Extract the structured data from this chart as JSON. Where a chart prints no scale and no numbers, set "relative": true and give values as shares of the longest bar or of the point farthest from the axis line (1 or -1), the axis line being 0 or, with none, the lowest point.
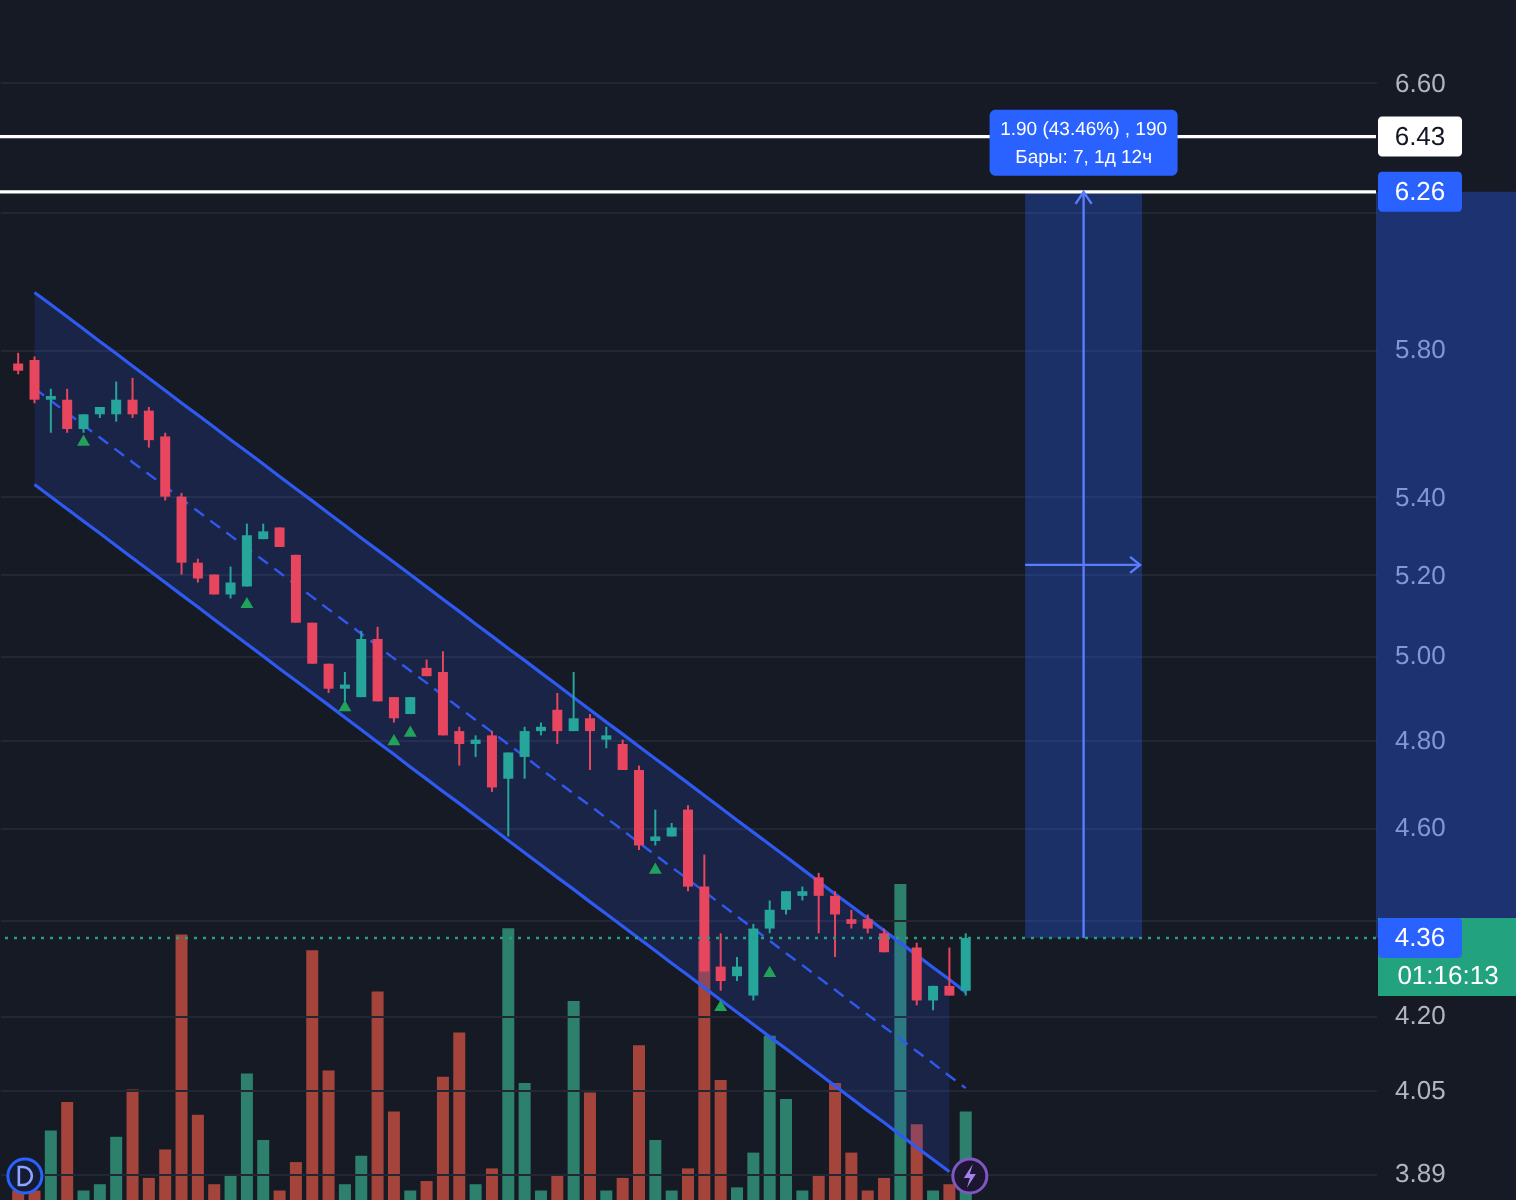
{
  "chart_data": [
    {
      "type": "candlestick",
      "log": true,
      "grid": "y",
      "categories": [
        null,
        null,
        null,
        null,
        null,
        null,
        null,
        null,
        null,
        null,
        null,
        null,
        null,
        null,
        null,
        null,
        null,
        null,
        null,
        null,
        null,
        null,
        null,
        null,
        null,
        null,
        null,
        null,
        null,
        null,
        null,
        null,
        null,
        null,
        null,
        null,
        null,
        null,
        null,
        null,
        null,
        null,
        null,
        null,
        null,
        null,
        null,
        null,
        null,
        null,
        null,
        null,
        null,
        null,
        null,
        null,
        null,
        null,
        null,
        null,
        null,
        null,
        null,
        null,
        null,
        null,
        null,
        null,
        null,
        null,
        null,
        null,
        null,
        null,
        null,
        null,
        null,
        null,
        null,
        null,
        null,
        null,
        null
      ],
      "ohlc": [
        [
          5.76,
          5.79,
          5.73,
          5.74
        ],
        [
          5.77,
          5.78,
          5.65,
          5.66
        ],
        [
          5.66,
          5.69,
          5.57,
          5.67
        ],
        [
          5.66,
          5.69,
          5.57,
          5.58
        ],
        [
          5.58,
          5.62,
          5.57,
          5.62
        ],
        [
          5.62,
          5.64,
          5.61,
          5.64
        ],
        [
          5.62,
          5.71,
          5.6,
          5.66
        ],
        [
          5.66,
          5.72,
          5.61,
          5.62
        ],
        [
          5.63,
          5.64,
          5.53,
          5.55
        ],
        [
          5.56,
          5.57,
          5.39,
          5.4
        ],
        [
          5.4,
          5.41,
          5.2,
          5.23
        ],
        [
          5.23,
          5.24,
          5.18,
          5.19
        ],
        [
          5.2,
          5.2,
          5.15,
          5.15
        ],
        [
          5.15,
          5.22,
          5.14,
          5.18
        ],
        [
          5.17,
          5.33,
          5.17,
          5.3
        ],
        [
          5.29,
          5.33,
          5.29,
          5.31
        ],
        [
          5.32,
          5.32,
          5.27,
          5.27
        ],
        [
          5.25,
          5.25,
          5.08,
          5.08
        ],
        [
          5.08,
          5.08,
          4.98,
          4.98
        ],
        [
          4.98,
          4.98,
          4.91,
          4.92
        ],
        [
          4.92,
          4.96,
          4.89,
          4.93
        ],
        [
          4.9,
          5.06,
          4.9,
          5.04
        ],
        [
          5.04,
          5.07,
          4.89,
          4.89
        ],
        [
          4.9,
          4.9,
          4.84,
          4.85
        ],
        [
          4.86,
          4.9,
          4.86,
          4.9
        ],
        [
          4.97,
          4.99,
          4.95,
          4.95
        ],
        [
          4.96,
          5.01,
          4.81,
          4.81
        ],
        [
          4.82,
          4.83,
          4.74,
          4.79
        ],
        [
          4.79,
          4.81,
          4.76,
          4.8
        ],
        [
          4.81,
          4.82,
          4.68,
          4.69
        ],
        [
          4.71,
          4.77,
          4.58,
          4.77
        ],
        [
          4.76,
          4.83,
          4.71,
          4.82
        ],
        [
          4.82,
          4.84,
          4.81,
          4.83
        ],
        [
          4.87,
          4.91,
          4.79,
          4.82
        ],
        [
          4.82,
          4.96,
          4.82,
          4.85
        ],
        [
          4.85,
          4.86,
          4.73,
          4.82
        ],
        [
          4.8,
          4.83,
          4.78,
          4.81
        ],
        [
          4.79,
          4.8,
          4.73,
          4.73
        ],
        [
          4.73,
          4.74,
          4.55,
          4.56
        ],
        [
          4.57,
          4.64,
          4.56,
          4.58
        ],
        [
          4.58,
          4.61,
          4.58,
          4.6
        ],
        [
          4.64,
          4.65,
          4.46,
          4.47
        ],
        [
          4.47,
          4.54,
          4.29,
          4.29
        ],
        [
          4.3,
          4.37,
          4.25,
          4.27
        ],
        [
          4.28,
          4.32,
          4.27,
          4.3
        ],
        [
          4.24,
          4.39,
          4.23,
          4.38
        ],
        [
          4.38,
          4.44,
          4.37,
          4.42
        ],
        [
          4.42,
          4.46,
          4.41,
          4.46
        ],
        [
          4.45,
          4.47,
          4.44,
          4.46
        ],
        [
          4.49,
          4.5,
          4.37,
          4.45
        ],
        [
          4.45,
          4.46,
          4.32,
          4.41
        ],
        [
          4.4,
          4.42,
          4.38,
          4.39
        ],
        [
          4.4,
          4.41,
          4.37,
          4.38
        ],
        [
          4.37,
          4.38,
          4.33,
          4.33
        ],
        null,
        [
          4.34,
          4.35,
          4.22,
          4.23
        ],
        [
          4.23,
          4.26,
          4.21,
          4.26
        ],
        [
          4.26,
          4.34,
          4.24,
          4.24
        ],
        [
          4.25,
          4.37,
          4.24,
          4.36
        ],
        null,
        null,
        null,
        null,
        null,
        null,
        null,
        null,
        null,
        null,
        null,
        null,
        null,
        null,
        null,
        null,
        null,
        null,
        null,
        null,
        null,
        null,
        null,
        null
      ],
      "colors": [
        "#e8465f",
        "#e8465f",
        "#26a69a",
        "#e8465f",
        "#26a69a",
        "#26a69a",
        "#26a69a",
        "#e8465f",
        "#e8465f",
        "#e8465f",
        "#e8465f",
        "#e8465f",
        "#e8465f",
        "#26a69a",
        "#26a69a",
        "#26a69a",
        "#e8465f",
        "#e8465f",
        "#e8465f",
        "#e8465f",
        "#26a69a",
        "#26a69a",
        "#e8465f",
        "#e8465f",
        "#26a69a",
        "#e8465f",
        "#e8465f",
        "#e8465f",
        "#26a69a",
        "#e8465f",
        "#26a69a",
        "#26a69a",
        "#26a69a",
        "#e8465f",
        "#26a69a",
        "#e8465f",
        "#26a69a",
        "#e8465f",
        "#e8465f",
        "#26a69a",
        "#26a69a",
        "#e8465f",
        "#e8465f",
        "#e8465f",
        "#26a69a",
        "#26a69a",
        "#26a69a",
        "#26a69a",
        "#26a69a",
        "#e8465f",
        "#e8465f",
        "#e8465f",
        "#e8465f",
        "#e8465f",
        null,
        "#e8465f",
        "#26a69a",
        "#e8465f",
        "#26a69a",
        null,
        null,
        null,
        null,
        null,
        null,
        null,
        null,
        null,
        null,
        null,
        null,
        null,
        null,
        null,
        null,
        null,
        null,
        null,
        null,
        null,
        null,
        null,
        null
      ],
      "series": [
        {
          "type": "line",
          "line_style": "dashed",
          "color": "#2f5af2",
          "values": [
            null,
            5.691,
            5.657,
            5.624,
            5.59,
            5.557,
            5.524,
            5.491,
            5.459,
            5.427,
            5.394,
            5.362,
            5.33,
            5.299,
            null,
            5.236,
            5.205,
            5.174,
            5.144,
            5.113,
            5.083,
            5.053,
            5.023,
            4.993,
            4.963,
            4.934,
            4.904,
            4.875,
            4.846,
            4.818,
            4.789,
            4.761,
            4.732,
            4.704,
            4.676,
            4.649,
            4.621,
            4.594,
            4.566,
            4.539,
            4.512,
            4.486,
            4.459,
            4.433,
            4.406,
            4.38,
            4.354,
            4.328,
            4.303,
            4.277,
            4.252,
            4.226,
            4.201,
            4.176,
            4.152,
            4.127,
            4.103,
            4.078,
            4.054,
            null,
            null,
            null,
            null,
            null,
            null,
            null,
            null,
            null,
            null,
            null,
            null,
            null,
            null,
            null,
            null,
            null,
            null,
            null,
            null,
            null,
            null,
            null,
            null
          ],
          "lower": [
            null,
            5.432,
            5.4,
            5.368,
            5.336,
            5.305,
            5.273,
            5.242,
            5.211,
            5.18,
            5.149,
            5.119,
            5.088,
            5.058,
            5.028,
            4.998,
            4.968,
            4.939,
            4.91,
            4.881,
            4.852,
            4.823,
            4.794,
            4.766,
            4.737,
            4.709,
            4.681,
            4.654,
            4.626,
            4.599,
            4.571,
            4.544,
            4.517,
            4.49,
            4.464,
            4.437,
            4.411,
            4.385,
            4.359,
            4.333,
            4.307,
            4.282,
            4.256,
            4.231,
            4.206,
            4.181,
            4.156,
            4.132,
            4.107,
            4.083,
            4.058,
            4.034,
            4.01,
            3.987,
            3.963,
            3.939,
            3.916,
            3.893,
            null,
            null,
            null,
            null,
            null,
            null,
            null,
            null,
            null,
            null,
            null,
            null,
            null,
            null,
            null,
            null,
            null,
            null,
            null,
            null,
            null,
            null,
            null,
            null,
            null
          ],
          "upper": [
            null,
            5.962,
            5.927,
            5.892,
            5.857,
            5.822,
            5.788,
            5.753,
            5.719,
            5.685,
            5.651,
            5.618,
            5.585,
            5.551,
            5.519,
            5.486,
            5.453,
            5.421,
            5.389,
            5.357,
            5.325,
            5.293,
            5.262,
            5.231,
            5.2,
            5.169,
            5.138,
            5.108,
            5.077,
            5.047,
            5.017,
            4.988,
            4.958,
            4.929,
            4.899,
            4.87,
            4.841,
            4.813,
            4.784,
            4.756,
            4.728,
            4.7,
            4.672,
            4.644,
            4.616,
            4.589,
            4.562,
            4.535,
            4.508,
            4.481,
            4.454,
            4.428,
            4.402,
            4.376,
            4.35,
            4.324,
            4.298,
            4.273,
            null,
            null,
            null,
            null,
            null,
            null,
            null,
            null,
            null,
            null,
            null,
            null,
            null,
            null,
            null,
            null,
            null,
            null,
            null,
            null,
            null,
            null,
            null,
            null,
            null
          ]
        },
        {
          "type": "line",
          "color": "#2f5af2",
          "values": [
            null,
            5.962,
            5.927,
            5.892,
            5.857,
            5.822,
            5.788,
            5.753,
            5.719,
            5.685,
            5.651,
            5.618,
            5.585,
            5.551,
            5.519,
            5.486,
            5.453,
            5.421,
            5.389,
            5.357,
            5.325,
            5.293,
            5.262,
            5.231,
            5.2,
            5.169,
            5.138,
            5.108,
            5.077,
            5.047,
            5.017,
            4.988,
            4.958,
            4.929,
            4.899,
            4.87,
            4.841,
            4.813,
            4.784,
            4.756,
            4.728,
            4.7,
            4.672,
            4.644,
            4.616,
            4.589,
            4.562,
            4.535,
            4.508,
            4.481,
            4.454,
            4.428,
            4.402,
            4.376,
            4.35,
            4.324,
            4.298,
            4.273,
            4.247,
            null,
            null,
            null,
            null,
            null,
            null,
            null,
            null,
            null,
            null,
            null,
            null,
            null,
            null,
            null,
            null,
            null,
            null,
            null,
            null,
            null,
            null,
            null,
            null
          ]
        },
        {
          "type": "line",
          "color": "#2f5af2",
          "values": [
            null,
            5.432,
            5.4,
            5.368,
            5.336,
            5.305,
            5.273,
            5.242,
            5.211,
            5.18,
            5.149,
            5.119,
            5.088,
            5.058,
            5.028,
            4.998,
            4.968,
            4.939,
            4.91,
            4.881,
            4.852,
            4.823,
            4.794,
            4.766,
            4.737,
            4.709,
            4.681,
            4.654,
            4.626,
            4.599,
            4.571,
            4.544,
            4.517,
            4.49,
            4.464,
            4.437,
            4.411,
            4.385,
            4.359,
            4.333,
            4.307,
            4.282,
            4.256,
            4.231,
            4.206,
            4.181,
            4.156,
            4.132,
            4.107,
            4.083,
            4.058,
            4.034,
            4.01,
            3.987,
            3.963,
            3.939,
            3.916,
            3.893,
            null,
            null,
            null,
            null,
            null,
            null,
            null,
            null,
            null,
            null,
            null,
            null,
            null,
            null,
            null,
            null,
            null,
            null,
            null,
            null,
            null,
            null,
            null,
            null,
            null
          ]
        },
        {
          "type": "scatter",
          "marker": "triangle",
          "color": "#21a15a",
          "values": [
            null,
            null,
            null,
            null,
            5.55,
            null,
            null,
            null,
            null,
            null,
            null,
            null,
            null,
            null,
            5.13,
            null,
            null,
            null,
            null,
            null,
            4.88,
            null,
            null,
            4.8,
            4.82,
            null,
            null,
            null,
            null,
            null,
            null,
            null,
            null,
            null,
            null,
            null,
            null,
            null,
            null,
            4.51,
            null,
            null,
            null,
            4.22,
            null,
            null,
            4.29,
            null,
            null,
            null,
            null,
            null,
            null,
            null,
            null,
            null,
            null,
            null,
            null,
            null,
            null,
            null,
            null,
            null,
            null,
            null,
            null,
            null,
            null,
            null,
            null,
            null,
            null,
            null,
            null,
            null,
            null,
            null,
            null,
            null,
            null,
            null,
            null
          ]
        }
      ],
      "ylim": [
        3.84,
        6.87
      ],
      "yticks": [
        {
          "value": 6.6,
          "label": "6.60"
        },
        {
          "value": 6.2,
          "label": null
        },
        {
          "value": 5.8,
          "label": "5.80"
        },
        {
          "value": 5.4,
          "label": "5.40"
        },
        {
          "value": 5.2,
          "label": "5.20"
        },
        {
          "value": 5.0,
          "label": "5.00"
        },
        {
          "value": 4.8,
          "label": "4.80"
        },
        {
          "value": 4.6,
          "label": "4.60"
        },
        {
          "value": 4.4,
          "label": null
        },
        {
          "value": 4.2,
          "label": "4.20"
        },
        {
          "value": 4.05,
          "label": "4.05"
        },
        {
          "value": 3.89,
          "label": "3.89"
        }
      ],
      "ref_lines": [
        {
          "axis": "y",
          "value": 6.43,
          "label": "6.43",
          "color": "#ffffff"
        },
        {
          "axis": "y",
          "value": 6.26,
          "label": "6.26",
          "color": "#ffffff"
        },
        {
          "axis": "y",
          "value": 4.36,
          "label": "4.36",
          "color": "#22a27f",
          "line_style": "dotted"
        }
      ],
      "bands": [
        {
          "axis": "y",
          "from": 4.36,
          "to": 6.26,
          "color": "#2962ff"
        }
      ],
      "annotations": [
        "1.90 (43.46%) , 190",
        "Бары: 7, 1д 12ч",
        "01:16:13"
      ]
    },
    {
      "type": "bar",
      "relative": true,
      "categories": [
        null,
        null,
        null,
        null,
        null,
        null,
        null,
        null,
        null,
        null,
        null,
        null,
        null,
        null,
        null,
        null,
        null,
        null,
        null,
        null,
        null,
        null,
        null,
        null,
        null,
        null,
        null,
        null,
        null,
        null,
        null,
        null,
        null,
        null,
        null,
        null,
        null,
        null,
        null,
        null,
        null,
        null,
        null,
        null,
        null,
        null,
        null,
        null,
        null,
        null,
        null,
        null,
        null,
        null,
        null,
        null,
        null,
        null,
        null,
        null,
        null,
        null,
        null,
        null,
        null,
        null,
        null,
        null,
        null,
        null,
        null,
        null,
        null,
        null,
        null,
        null,
        null,
        null,
        null,
        null,
        null,
        null,
        null
      ],
      "values": [
        0.03,
        0.03,
        0.22,
        0.31,
        0.03,
        0.05,
        0.2,
        0.35,
        0.07,
        0.16,
        0.84,
        0.27,
        0.05,
        0.08,
        0.4,
        0.19,
        0.03,
        0.12,
        0.79,
        0.41,
        0.05,
        0.14,
        0.66,
        0.28,
        0.03,
        0.06,
        0.39,
        0.53,
        0.05,
        0.1,
        0.86,
        0.37,
        0.03,
        0.08,
        0.63,
        0.34,
        0.03,
        0.07,
        0.49,
        0.19,
        0.03,
        0.1,
        0.82,
        0.38,
        0.04,
        0.15,
        0.52,
        0.32,
        0.03,
        0.08,
        0.37,
        0.15,
        0.03,
        0.07,
        1,
        0.24,
        0.03,
        0.05,
        0.28,
        null,
        null,
        null,
        null,
        null,
        null,
        null,
        null,
        null,
        null,
        null,
        null,
        null,
        null,
        null,
        null,
        null,
        null,
        null,
        null,
        null,
        null,
        null,
        null
      ],
      "colors": [
        "#a5443a",
        "#a5443a",
        "#2c806c",
        "#a5443a",
        "#2c806c",
        "#2c806c",
        "#2c806c",
        "#a5443a",
        "#a5443a",
        "#a5443a",
        "#a5443a",
        "#a5443a",
        "#a5443a",
        "#2c806c",
        "#2c806c",
        "#2c806c",
        "#a5443a",
        "#a5443a",
        "#a5443a",
        "#a5443a",
        "#2c806c",
        "#2c806c",
        "#a5443a",
        "#a5443a",
        "#2c806c",
        "#a5443a",
        "#a5443a",
        "#a5443a",
        "#2c806c",
        "#a5443a",
        "#2c806c",
        "#2c806c",
        "#2c806c",
        "#a5443a",
        "#2c806c",
        "#a5443a",
        "#2c806c",
        "#a5443a",
        "#a5443a",
        "#2c806c",
        "#2c806c",
        "#a5443a",
        "#a5443a",
        "#a5443a",
        "#2c806c",
        "#2c806c",
        "#2c806c",
        "#2c806c",
        "#2c806c",
        "#a5443a",
        "#a5443a",
        "#a5443a",
        "#a5443a",
        "#a5443a",
        "#2c806c",
        "#a5443a",
        "#2c806c",
        "#a5443a",
        "#2c806c",
        null,
        null,
        null,
        null,
        null,
        null,
        null,
        null,
        null,
        null,
        null,
        null,
        null,
        null,
        null,
        null,
        null,
        null,
        null,
        null,
        null,
        null,
        null,
        null
      ]
    }
  ]
}
